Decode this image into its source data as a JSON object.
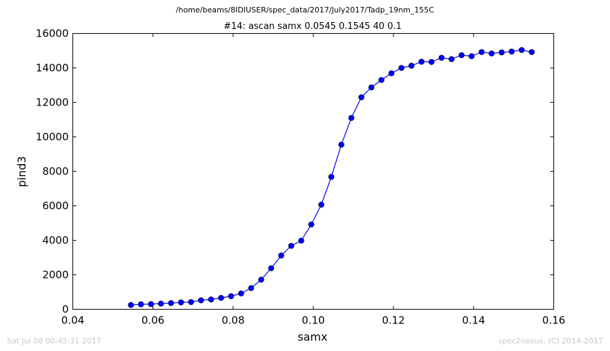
{
  "suptitle": "/home/beams/8IDIUSER/spec_data/2017/July2017/Tadp_19nm_155C",
  "footer": {
    "timestamp": "Sat Jul 08 00:45:31 2017",
    "credit": "spec2nexus, (C) 2014-2017"
  },
  "chart_data": {
    "type": "line",
    "title": "#14: ascan  samx 0.0545 0.1545  40 0.1",
    "xlabel": "samx",
    "ylabel": "pind3",
    "xlim": [
      0.04,
      0.16
    ],
    "ylim": [
      0,
      16000
    ],
    "xticks": [
      "0.04",
      "0.06",
      "0.08",
      "0.10",
      "0.12",
      "0.14",
      "0.16"
    ],
    "yticks": [
      "0",
      "2000",
      "4000",
      "6000",
      "8000",
      "10000",
      "12000",
      "14000",
      "16000"
    ],
    "grid": false,
    "color": "#0000ff",
    "series": [
      {
        "x": [
          0.0545,
          0.057,
          0.0595,
          0.062,
          0.0645,
          0.067,
          0.0695,
          0.072,
          0.0745,
          0.077,
          0.0795,
          0.082,
          0.0845,
          0.087,
          0.0895,
          0.092,
          0.0945,
          0.097,
          0.0995,
          0.102,
          0.1045,
          0.107,
          0.1095,
          0.112,
          0.1145,
          0.117,
          0.1195,
          0.122,
          0.1245,
          0.127,
          0.1295,
          0.132,
          0.1345,
          0.137,
          0.1395,
          0.142,
          0.1445,
          0.147,
          0.1495,
          0.152,
          0.1545
        ],
        "values": [
          250,
          290,
          300,
          330,
          360,
          400,
          420,
          520,
          570,
          660,
          760,
          920,
          1230,
          1720,
          2380,
          3120,
          3680,
          3980,
          4920,
          6070,
          7680,
          9550,
          11100,
          12300,
          12870,
          13300,
          13690,
          14000,
          14130,
          14360,
          14350,
          14590,
          14510,
          14740,
          14680,
          14920,
          14840,
          14900,
          14950,
          15040,
          14920
        ]
      }
    ]
  }
}
